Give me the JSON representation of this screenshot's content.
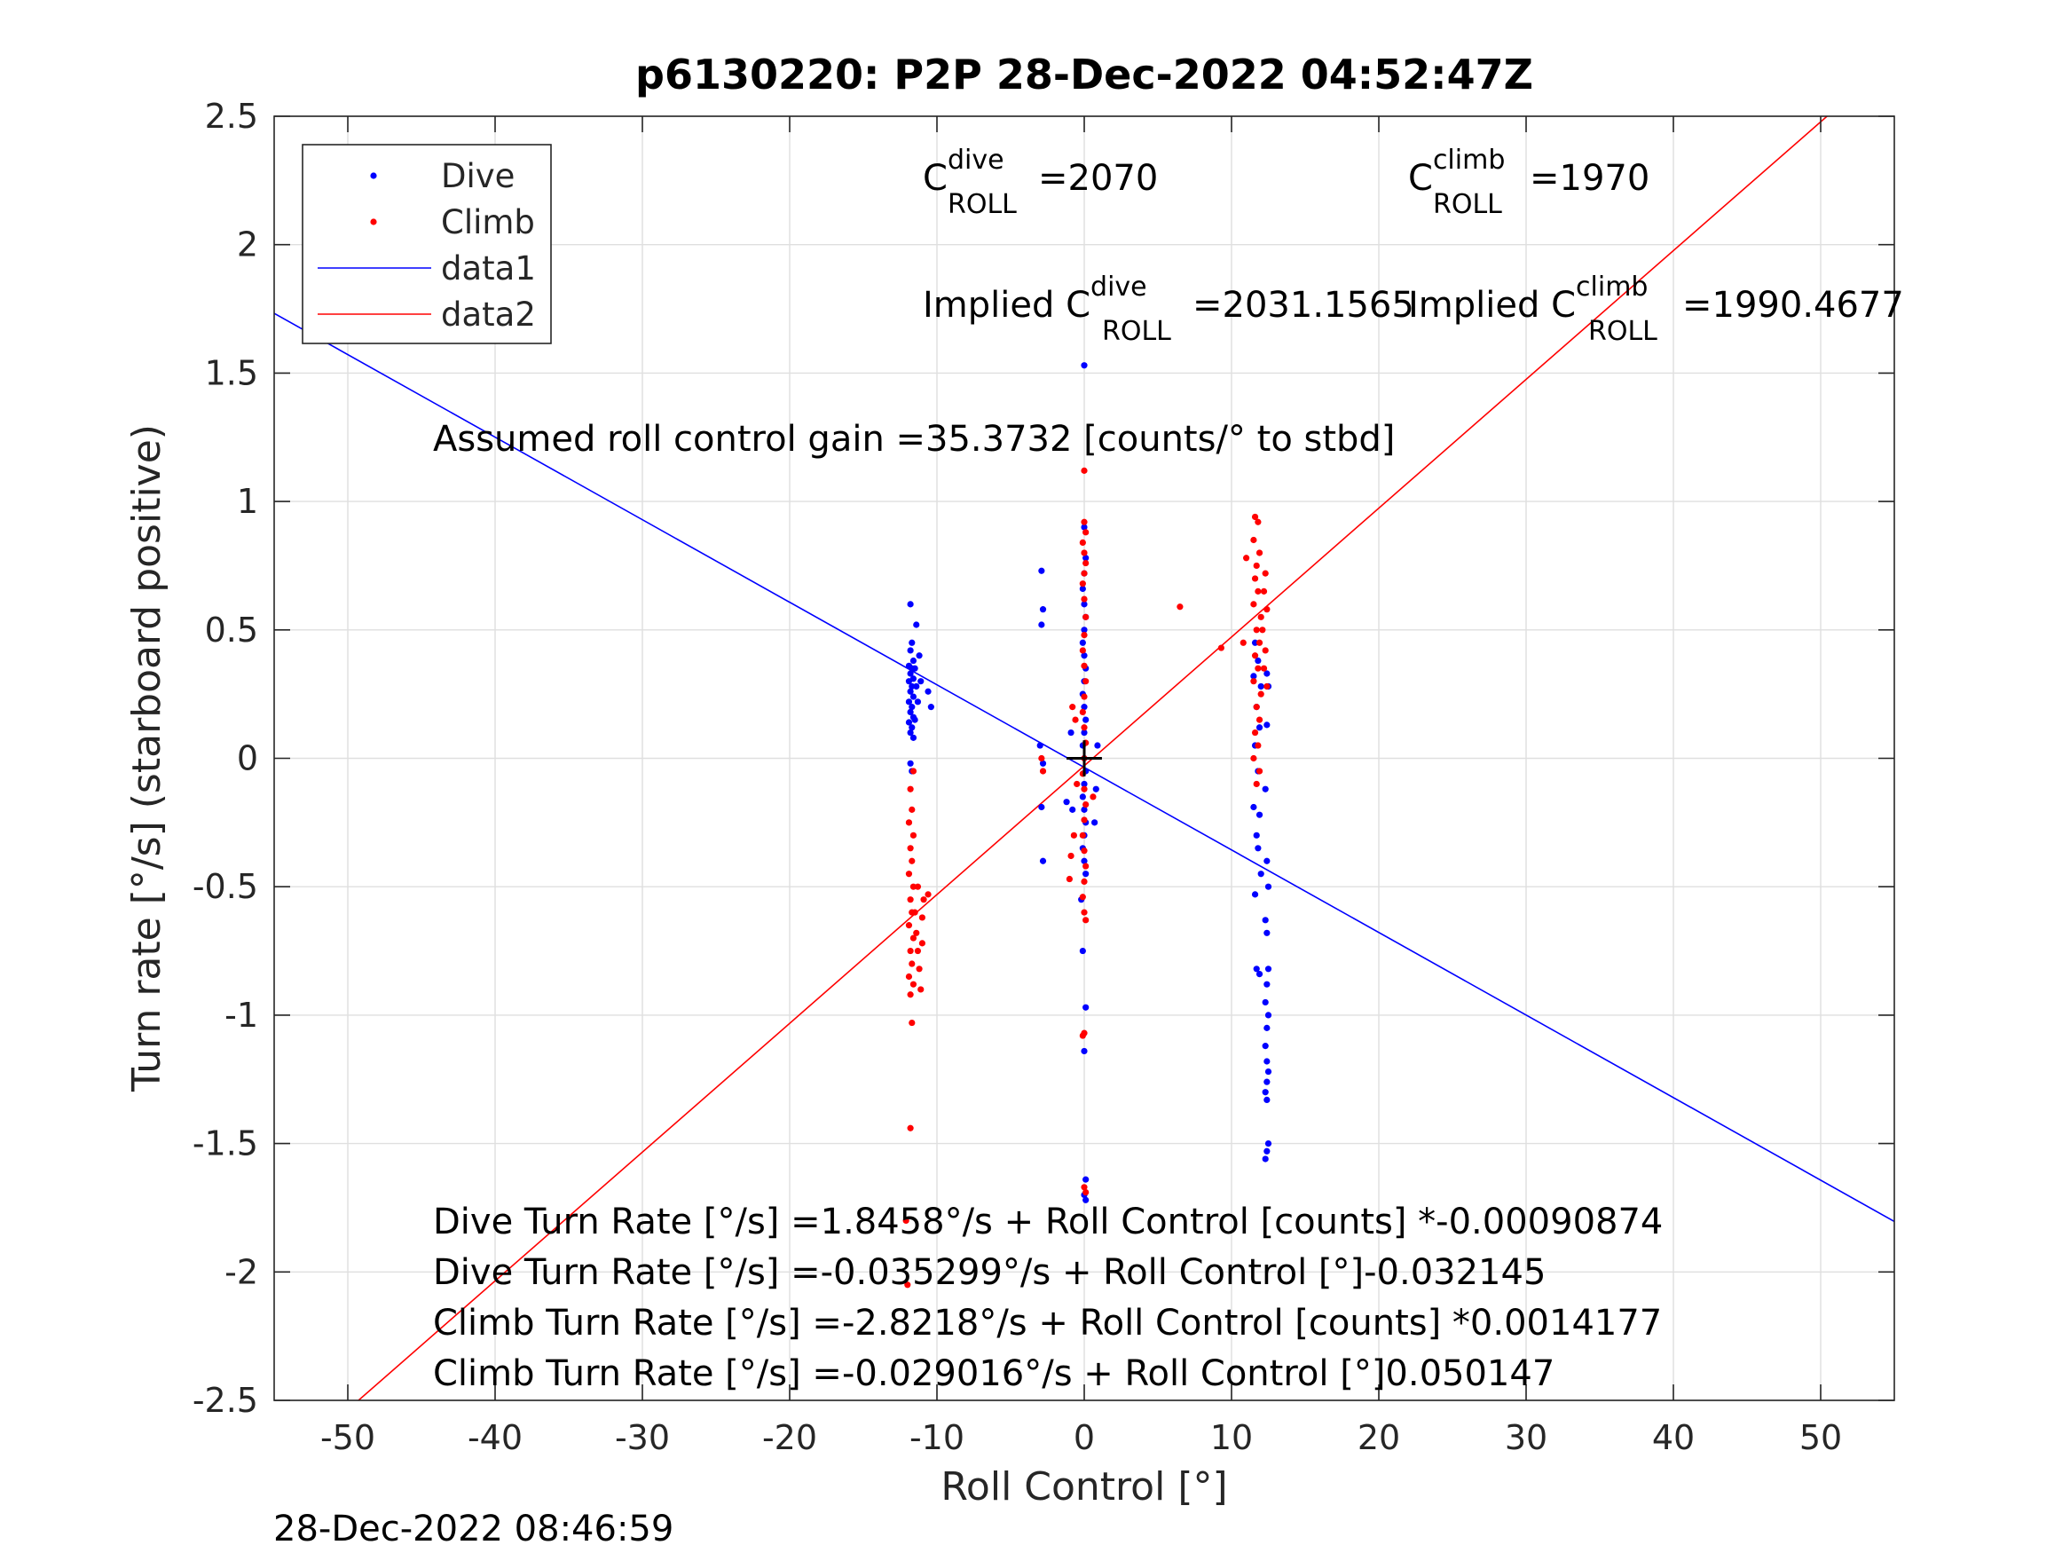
{
  "chart_data": {
    "type": "scatter",
    "title": "p6130220: P2P 28-Dec-2022 04:52:47Z",
    "xlabel": "Roll Control [°]",
    "ylabel": "Turn rate [°/s] (starboard positive)",
    "xlim": [
      -55,
      55
    ],
    "ylim": [
      -2.5,
      2.5
    ],
    "xticks": [
      -50,
      -40,
      -30,
      -20,
      -10,
      0,
      10,
      20,
      30,
      40,
      50
    ],
    "yticks": [
      -2.5,
      -2,
      -1.5,
      -1,
      -0.5,
      0,
      0.5,
      1,
      1.5,
      2,
      2.5
    ],
    "grid": true,
    "legend_position": "top-left",
    "legend": [
      "Dive",
      "Climb",
      "data1",
      "data2"
    ],
    "colors": {
      "dive": "#0000ff",
      "climb": "#ff0000",
      "marker": "#000000"
    },
    "annotations": {
      "c_dive": {
        "base": "C",
        "sup": "dive",
        "sub": "ROLL",
        "value": "=2070"
      },
      "c_climb": {
        "base": "C",
        "sup": "climb",
        "sub": "ROLL",
        "value": "=1970"
      },
      "implied_dive": {
        "base": "Implied C",
        "sup": "dive",
        "sub": "ROLL",
        "value": "=2031.1565"
      },
      "implied_climb": {
        "base": "Implied C",
        "sup": "climb",
        "sub": "ROLL",
        "value": "=1990.4677"
      },
      "gain": "Assumed roll control gain =35.3732 [counts/° to stbd]",
      "fit1": "Dive Turn Rate [°/s] =1.8458°/s + Roll Control [counts] *-0.00090874",
      "fit2": "Dive Turn Rate [°/s] =-0.035299°/s + Roll Control [°]-0.032145",
      "fit3": "Climb Turn Rate [°/s] =-2.8218°/s + Roll Control [counts] *0.0014177",
      "fit4": "Climb Turn Rate [°/s] =-0.029016°/s + Roll Control [°]0.050147"
    },
    "timestamp": "28-Dec-2022 08:46:59",
    "lines": [
      {
        "name": "data1",
        "intercept": -0.035299,
        "slope": -0.032145
      },
      {
        "name": "data2",
        "intercept": -0.029016,
        "slope": 0.050147
      }
    ],
    "crosshair": {
      "x": 0,
      "y": 0
    },
    "series": [
      {
        "name": "Dive",
        "points": [
          [
            -11.8,
            0.6
          ],
          [
            -11.7,
            0.45
          ],
          [
            -11.8,
            0.42
          ],
          [
            -11.6,
            0.38
          ],
          [
            -11.9,
            0.36
          ],
          [
            -11.7,
            0.35
          ],
          [
            -11.8,
            0.33
          ],
          [
            -11.6,
            0.31
          ],
          [
            -11.9,
            0.3
          ],
          [
            -11.7,
            0.28
          ],
          [
            -11.8,
            0.26
          ],
          [
            -11.6,
            0.24
          ],
          [
            -11.9,
            0.22
          ],
          [
            -11.7,
            0.2
          ],
          [
            -11.8,
            0.18
          ],
          [
            -11.6,
            0.16
          ],
          [
            -11.9,
            0.14
          ],
          [
            -11.7,
            0.12
          ],
          [
            -11.8,
            0.1
          ],
          [
            -11.6,
            0.08
          ],
          [
            -11.5,
            0.35
          ],
          [
            -11.4,
            0.28
          ],
          [
            -11.3,
            0.22
          ],
          [
            -11.5,
            0.15
          ],
          [
            -11.2,
            0.4
          ],
          [
            -11.4,
            0.52
          ],
          [
            -10.6,
            0.26
          ],
          [
            -10.4,
            0.2
          ],
          [
            -11.1,
            0.3
          ],
          [
            -11.8,
            -0.02
          ],
          [
            -11.7,
            -0.05
          ],
          [
            -2.9,
            0.73
          ],
          [
            -2.8,
            0.58
          ],
          [
            -2.9,
            0.52
          ],
          [
            -3.0,
            0.05
          ],
          [
            -2.8,
            -0.02
          ],
          [
            -2.9,
            -0.19
          ],
          [
            -2.8,
            -0.4
          ],
          [
            -1.2,
            -0.17
          ],
          [
            0.0,
            1.53
          ],
          [
            0.0,
            0.9
          ],
          [
            0.1,
            0.78
          ],
          [
            0.0,
            0.72
          ],
          [
            -0.1,
            0.66
          ],
          [
            0.0,
            0.6
          ],
          [
            0.1,
            0.55
          ],
          [
            0.0,
            0.5
          ],
          [
            -0.1,
            0.45
          ],
          [
            0.0,
            0.4
          ],
          [
            0.1,
            0.35
          ],
          [
            0.0,
            0.3
          ],
          [
            -0.1,
            0.25
          ],
          [
            0.0,
            0.2
          ],
          [
            0.1,
            0.15
          ],
          [
            0.0,
            0.1
          ],
          [
            -0.1,
            0.05
          ],
          [
            0.0,
            0.0
          ],
          [
            0.1,
            -0.05
          ],
          [
            0.0,
            -0.1
          ],
          [
            -0.1,
            -0.15
          ],
          [
            0.0,
            -0.2
          ],
          [
            0.1,
            -0.25
          ],
          [
            0.0,
            -0.3
          ],
          [
            -0.1,
            -0.35
          ],
          [
            0.0,
            -0.4
          ],
          [
            0.1,
            -0.45
          ],
          [
            -0.2,
            -0.55
          ],
          [
            -0.1,
            -0.75
          ],
          [
            0.1,
            -0.97
          ],
          [
            0.0,
            -1.14
          ],
          [
            0.1,
            -1.64
          ],
          [
            0.0,
            -1.7
          ],
          [
            0.1,
            -1.72
          ],
          [
            0.8,
            -0.12
          ],
          [
            0.9,
            0.05
          ],
          [
            -0.9,
            0.1
          ],
          [
            -0.8,
            -0.2
          ],
          [
            0.7,
            -0.25
          ],
          [
            11.6,
            0.45
          ],
          [
            11.8,
            0.38
          ],
          [
            11.5,
            0.32
          ],
          [
            12.0,
            0.28
          ],
          [
            11.7,
            0.2
          ],
          [
            11.9,
            0.12
          ],
          [
            11.6,
            0.05
          ],
          [
            11.8,
            -0.05
          ],
          [
            11.5,
            -0.19
          ],
          [
            11.9,
            -0.22
          ],
          [
            11.7,
            -0.3
          ],
          [
            11.8,
            -0.35
          ],
          [
            11.6,
            -0.53
          ],
          [
            12.0,
            -0.45
          ],
          [
            11.7,
            -0.82
          ],
          [
            11.9,
            -0.84
          ],
          [
            12.4,
            0.33
          ],
          [
            12.5,
            0.28
          ],
          [
            12.4,
            0.13
          ],
          [
            12.3,
            -0.12
          ],
          [
            12.4,
            -0.4
          ],
          [
            12.5,
            -0.5
          ],
          [
            12.3,
            -0.63
          ],
          [
            12.4,
            -0.68
          ],
          [
            12.5,
            -0.82
          ],
          [
            12.4,
            -0.88
          ],
          [
            12.3,
            -0.95
          ],
          [
            12.5,
            -1.0
          ],
          [
            12.4,
            -1.05
          ],
          [
            12.3,
            -1.12
          ],
          [
            12.4,
            -1.18
          ],
          [
            12.5,
            -1.22
          ],
          [
            12.4,
            -1.26
          ],
          [
            12.3,
            -1.3
          ],
          [
            12.4,
            -1.33
          ],
          [
            12.5,
            -1.5
          ],
          [
            12.4,
            -1.53
          ],
          [
            12.3,
            -1.56
          ]
        ]
      },
      {
        "name": "Climb",
        "points": [
          [
            -11.8,
            -1.44
          ],
          [
            -11.7,
            -1.03
          ],
          [
            -11.8,
            -0.92
          ],
          [
            -11.6,
            -0.88
          ],
          [
            -11.9,
            -0.85
          ],
          [
            -11.7,
            -0.8
          ],
          [
            -11.8,
            -0.75
          ],
          [
            -11.6,
            -0.7
          ],
          [
            -11.9,
            -0.65
          ],
          [
            -11.7,
            -0.6
          ],
          [
            -11.8,
            -0.55
          ],
          [
            -11.6,
            -0.5
          ],
          [
            -11.9,
            -0.45
          ],
          [
            -11.7,
            -0.4
          ],
          [
            -11.8,
            -0.35
          ],
          [
            -11.6,
            -0.3
          ],
          [
            -11.9,
            -0.25
          ],
          [
            -11.7,
            -0.2
          ],
          [
            -11.8,
            -0.12
          ],
          [
            -11.6,
            -0.05
          ],
          [
            -11.5,
            -0.6
          ],
          [
            -11.4,
            -0.68
          ],
          [
            -11.3,
            -0.75
          ],
          [
            -11.2,
            -0.82
          ],
          [
            -11.1,
            -0.9
          ],
          [
            -11.0,
            -0.62
          ],
          [
            -10.9,
            -0.55
          ],
          [
            -10.6,
            -0.53
          ],
          [
            -11.3,
            -0.5
          ],
          [
            -11.0,
            -0.72
          ],
          [
            -12.1,
            -1.8
          ],
          [
            -12.0,
            -2.05
          ],
          [
            -2.9,
            0.0
          ],
          [
            -2.8,
            -0.05
          ],
          [
            -1.0,
            -0.47
          ],
          [
            0.0,
            1.12
          ],
          [
            0.0,
            0.92
          ],
          [
            0.1,
            0.88
          ],
          [
            -0.1,
            0.84
          ],
          [
            0.0,
            0.8
          ],
          [
            0.1,
            0.76
          ],
          [
            0.0,
            0.72
          ],
          [
            -0.1,
            0.68
          ],
          [
            0.0,
            0.62
          ],
          [
            0.1,
            0.55
          ],
          [
            0.0,
            0.48
          ],
          [
            -0.1,
            0.42
          ],
          [
            0.0,
            0.36
          ],
          [
            0.1,
            0.3
          ],
          [
            0.0,
            0.24
          ],
          [
            -0.1,
            0.18
          ],
          [
            0.0,
            0.12
          ],
          [
            0.1,
            0.06
          ],
          [
            0.0,
            0.0
          ],
          [
            -0.1,
            -0.06
          ],
          [
            0.0,
            -0.12
          ],
          [
            0.1,
            -0.18
          ],
          [
            0.0,
            -0.24
          ],
          [
            -0.1,
            -0.3
          ],
          [
            0.0,
            -0.36
          ],
          [
            0.1,
            -0.42
          ],
          [
            0.0,
            -0.48
          ],
          [
            -0.1,
            -0.54
          ],
          [
            0.0,
            -0.6
          ],
          [
            0.1,
            -0.63
          ],
          [
            0.0,
            -1.07
          ],
          [
            -0.1,
            -1.08
          ],
          [
            0.0,
            -1.67
          ],
          [
            0.1,
            -1.69
          ],
          [
            -0.8,
            0.2
          ],
          [
            -0.6,
            0.15
          ],
          [
            -0.5,
            -0.1
          ],
          [
            -0.7,
            -0.3
          ],
          [
            0.6,
            -0.15
          ],
          [
            -0.9,
            -0.38
          ],
          [
            6.5,
            0.59
          ],
          [
            9.3,
            0.43
          ],
          [
            11.0,
            0.78
          ],
          [
            10.8,
            0.45
          ],
          [
            11.6,
            0.94
          ],
          [
            11.8,
            0.92
          ],
          [
            11.5,
            0.85
          ],
          [
            11.9,
            0.8
          ],
          [
            11.7,
            0.75
          ],
          [
            11.6,
            0.7
          ],
          [
            11.8,
            0.65
          ],
          [
            11.5,
            0.6
          ],
          [
            12.0,
            0.55
          ],
          [
            11.7,
            0.5
          ],
          [
            11.9,
            0.45
          ],
          [
            11.6,
            0.4
          ],
          [
            11.8,
            0.35
          ],
          [
            11.5,
            0.3
          ],
          [
            12.0,
            0.25
          ],
          [
            11.7,
            0.2
          ],
          [
            11.9,
            0.15
          ],
          [
            11.6,
            0.1
          ],
          [
            11.8,
            0.05
          ],
          [
            11.5,
            0.0
          ],
          [
            11.9,
            -0.05
          ],
          [
            11.7,
            -0.1
          ],
          [
            12.3,
            0.72
          ],
          [
            12.2,
            0.65
          ],
          [
            12.4,
            0.58
          ],
          [
            12.1,
            0.5
          ],
          [
            12.3,
            0.42
          ],
          [
            12.2,
            0.35
          ],
          [
            12.4,
            0.28
          ]
        ]
      }
    ]
  }
}
